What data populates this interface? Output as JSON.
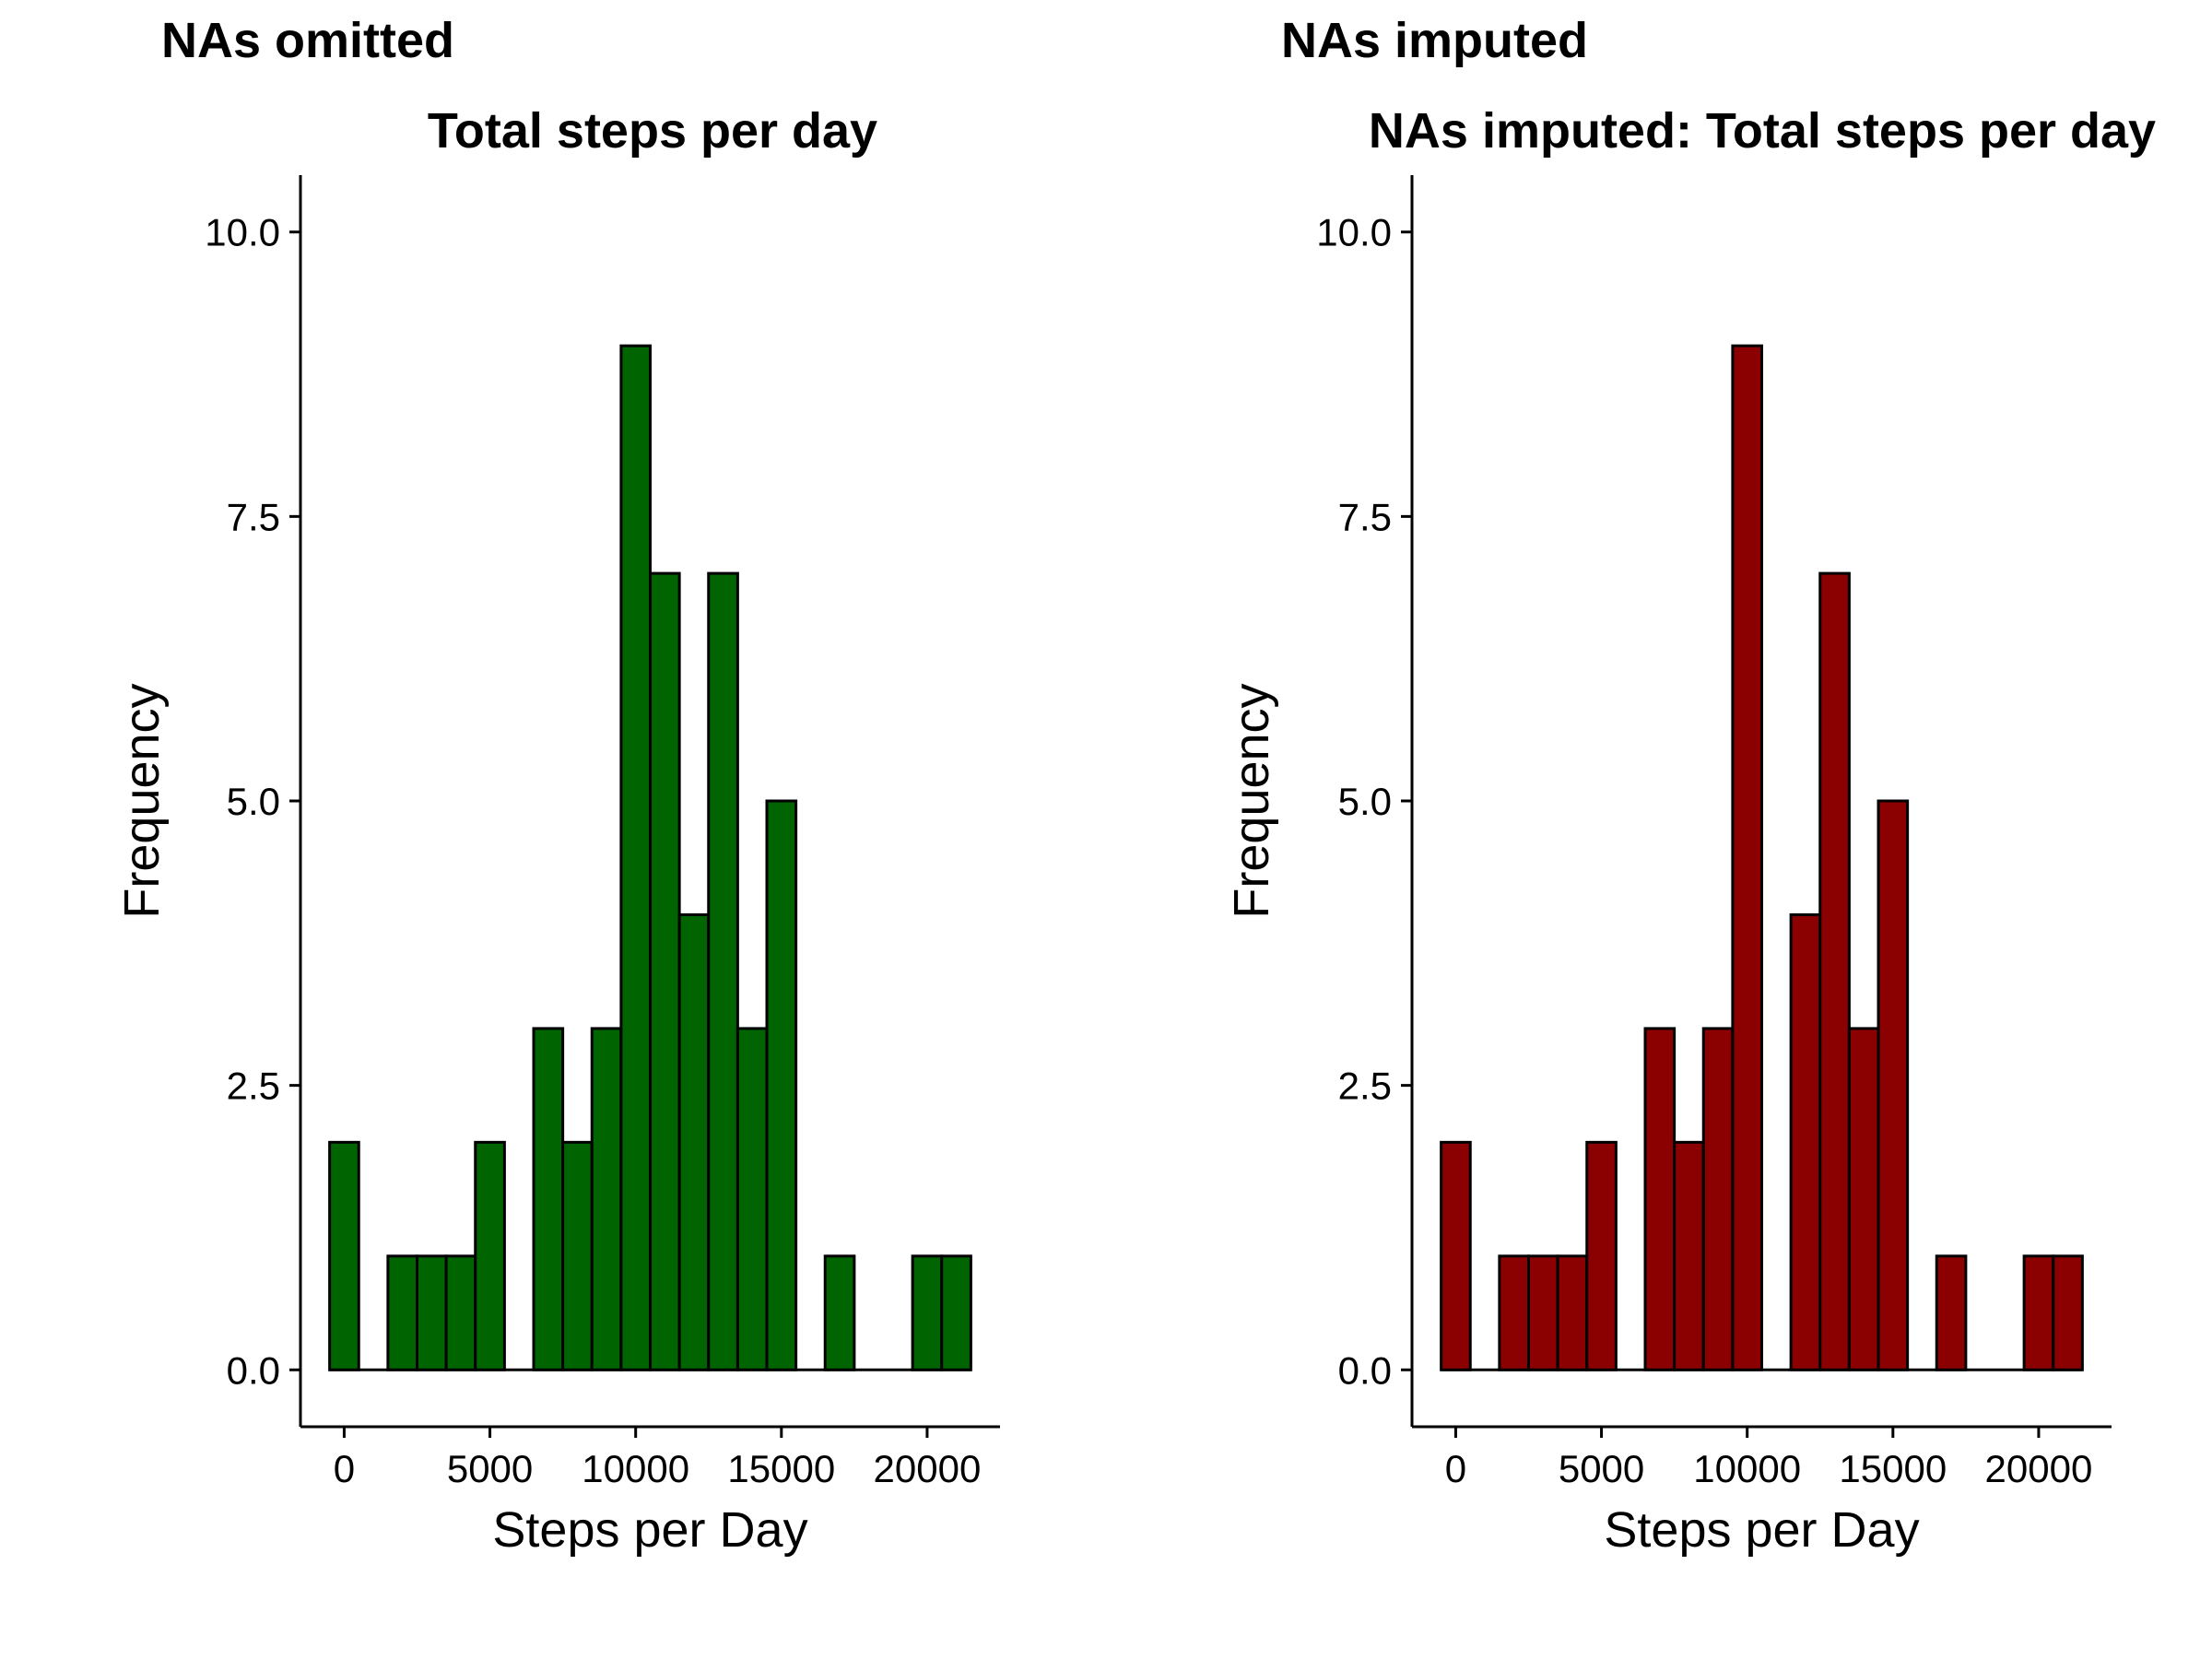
{
  "chart_data": [
    {
      "type": "bar",
      "panel_tag": "NAs omitted",
      "title": "Total steps per day",
      "xlabel": "Steps per Day",
      "ylabel": "Frequency",
      "fill_color": "#006400",
      "edge_color": "#000000",
      "grid": false,
      "bin_width": 1000,
      "x_ticks": [
        0,
        5000,
        10000,
        15000,
        20000
      ],
      "x_tick_labels": [
        "0",
        "5000",
        "10000",
        "15000",
        "20000"
      ],
      "y_ticks": [
        0,
        2.5,
        5,
        7.5,
        10
      ],
      "y_tick_labels": [
        "0.0",
        "2.5",
        "5.0",
        "7.5",
        "10.0"
      ],
      "xlim": [
        -1500,
        22500
      ],
      "ylim": [
        -0.5,
        10.5
      ],
      "bins": [
        {
          "x": 0,
          "count": 2
        },
        {
          "x": 1000,
          "count": 0
        },
        {
          "x": 2000,
          "count": 1
        },
        {
          "x": 3000,
          "count": 1
        },
        {
          "x": 4000,
          "count": 1
        },
        {
          "x": 5000,
          "count": 2
        },
        {
          "x": 6000,
          "count": 0
        },
        {
          "x": 7000,
          "count": 3
        },
        {
          "x": 8000,
          "count": 2
        },
        {
          "x": 9000,
          "count": 3
        },
        {
          "x": 10000,
          "count": 9
        },
        {
          "x": 11000,
          "count": 7
        },
        {
          "x": 12000,
          "count": 4
        },
        {
          "x": 13000,
          "count": 7
        },
        {
          "x": 14000,
          "count": 3
        },
        {
          "x": 15000,
          "count": 5
        },
        {
          "x": 16000,
          "count": 0
        },
        {
          "x": 17000,
          "count": 1
        },
        {
          "x": 18000,
          "count": 0
        },
        {
          "x": 19000,
          "count": 0
        },
        {
          "x": 20000,
          "count": 1
        },
        {
          "x": 21000,
          "count": 1
        }
      ]
    },
    {
      "type": "bar",
      "panel_tag": "NAs imputed",
      "title": "NAs imputed: Total steps per day",
      "xlabel": "Steps per Day",
      "ylabel": "Frequency",
      "fill_color": "#8B0000",
      "edge_color": "#000000",
      "grid": false,
      "bin_width": 1000,
      "x_ticks": [
        0,
        5000,
        10000,
        15000,
        20000
      ],
      "x_tick_labels": [
        "0",
        "5000",
        "10000",
        "15000",
        "20000"
      ],
      "y_ticks": [
        0,
        2.5,
        5,
        7.5,
        10
      ],
      "y_tick_labels": [
        "0.0",
        "2.5",
        "5.0",
        "7.5",
        "10.0"
      ],
      "xlim": [
        -1500,
        22500
      ],
      "ylim": [
        -0.5,
        10.5
      ],
      "bins": [
        {
          "x": 0,
          "count": 2
        },
        {
          "x": 1000,
          "count": 0
        },
        {
          "x": 2000,
          "count": 1
        },
        {
          "x": 3000,
          "count": 1
        },
        {
          "x": 4000,
          "count": 1
        },
        {
          "x": 5000,
          "count": 2
        },
        {
          "x": 6000,
          "count": 0
        },
        {
          "x": 7000,
          "count": 3
        },
        {
          "x": 8000,
          "count": 2
        },
        {
          "x": 9000,
          "count": 3
        },
        {
          "x": 10000,
          "count": 9
        },
        {
          "x": 11000,
          "count": 0
        },
        {
          "x": 12000,
          "count": 4
        },
        {
          "x": 13000,
          "count": 7
        },
        {
          "x": 14000,
          "count": 3
        },
        {
          "x": 15000,
          "count": 5
        },
        {
          "x": 16000,
          "count": 0
        },
        {
          "x": 17000,
          "count": 1
        },
        {
          "x": 18000,
          "count": 0
        },
        {
          "x": 19000,
          "count": 0
        },
        {
          "x": 20000,
          "count": 1
        },
        {
          "x": 21000,
          "count": 1
        }
      ]
    }
  ]
}
